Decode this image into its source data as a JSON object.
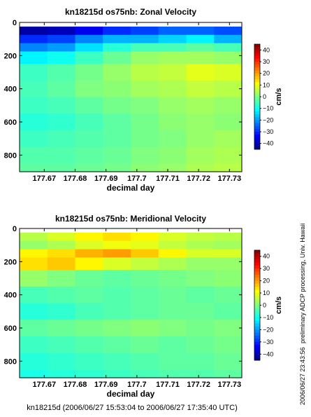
{
  "footer": "kn18215d (2006/06/27 15:53:04 to 2006/06/27 17:35:40 UTC)",
  "side_note": "preliminary ADCP processing,  Univ. Hawaii",
  "timestamp": "2006/06/27 23:43:56",
  "chart_data": [
    {
      "type": "heatmap",
      "title": "kn18215d os75nb: Zonal Velocity",
      "xlabel": "decimal day",
      "ylabel": "",
      "xlim": [
        177.662,
        177.734
      ],
      "ylim": [
        900,
        0
      ],
      "x_ticks": [
        177.67,
        177.68,
        177.69,
        177.7,
        177.71,
        177.72,
        177.73
      ],
      "x_tick_labels": [
        "177.67",
        "177.68",
        "177.69",
        "177.7",
        "177.71",
        "177.72",
        "177.73"
      ],
      "y_ticks": [
        0,
        200,
        400,
        600,
        800
      ],
      "y_tick_labels": [
        "0",
        "200",
        "400",
        "600",
        "800"
      ],
      "depth_levels": [
        50,
        100,
        150,
        200,
        300,
        400,
        500,
        600,
        700,
        800,
        900
      ],
      "values_cm_s": [
        [
          -42,
          -40,
          -35,
          -30,
          -28,
          -25,
          -25,
          -27
        ],
        [
          -30,
          -28,
          -22,
          -18,
          -18,
          -15,
          -12,
          -18
        ],
        [
          -22,
          -20,
          -14,
          -8,
          -5,
          -5,
          -3,
          -5
        ],
        [
          -12,
          -10,
          -6,
          -2,
          2,
          3,
          3,
          2
        ],
        [
          -6,
          -4,
          -1,
          2,
          5,
          6,
          9,
          8
        ],
        [
          -5,
          -3,
          0,
          1,
          3,
          4,
          6,
          5
        ],
        [
          -6,
          -5,
          -3,
          -1,
          0,
          2,
          3,
          2
        ],
        [
          -8,
          -7,
          -5,
          -3,
          -1,
          1,
          2,
          1
        ],
        [
          -6,
          -5,
          -4,
          -3,
          -1,
          0,
          2,
          3
        ],
        [
          -4,
          -4,
          -3,
          -2,
          0,
          1,
          3,
          4
        ],
        [
          -3,
          -3,
          -2,
          -1,
          1,
          2,
          4,
          5
        ]
      ],
      "colorbar": {
        "label": "cm/s",
        "ticks": [
          40,
          30,
          20,
          10,
          0,
          -10,
          -20,
          -30,
          -40
        ],
        "tick_labels": [
          "40",
          "30",
          "20",
          "10",
          "0",
          "−10",
          "−20",
          "−30",
          "−40"
        ],
        "range": [
          -45,
          45
        ]
      }
    },
    {
      "type": "heatmap",
      "title": "kn18215d os75nb: Meridional Velocity",
      "xlabel": "decimal day",
      "ylabel": "",
      "xlim": [
        177.662,
        177.734
      ],
      "ylim": [
        900,
        0
      ],
      "x_ticks": [
        177.67,
        177.68,
        177.69,
        177.7,
        177.71,
        177.72,
        177.73
      ],
      "x_tick_labels": [
        "177.67",
        "177.68",
        "177.69",
        "177.7",
        "177.71",
        "177.72",
        "177.73"
      ],
      "y_ticks": [
        0,
        200,
        400,
        600,
        800
      ],
      "y_tick_labels": [
        "0",
        "200",
        "400",
        "600",
        "800"
      ],
      "depth_levels": [
        50,
        100,
        150,
        200,
        300,
        400,
        500,
        600,
        700,
        800,
        900
      ],
      "values_cm_s": [
        [
          5,
          8,
          12,
          14,
          12,
          8,
          6,
          5
        ],
        [
          2,
          4,
          8,
          10,
          9,
          6,
          4,
          3
        ],
        [
          12,
          14,
          18,
          20,
          16,
          12,
          8,
          8
        ],
        [
          14,
          16,
          12,
          8,
          6,
          4,
          2,
          2
        ],
        [
          2,
          0,
          -2,
          -3,
          -2,
          -1,
          0,
          1
        ],
        [
          -5,
          -4,
          -3,
          -4,
          -3,
          -2,
          -3,
          -2
        ],
        [
          -8,
          -7,
          -5,
          -4,
          -3,
          -2,
          -2,
          -3
        ],
        [
          -3,
          -2,
          -1,
          0,
          1,
          0,
          -1,
          0
        ],
        [
          -6,
          -5,
          -4,
          -3,
          -2,
          -3,
          -2,
          -1
        ],
        [
          -8,
          -7,
          -6,
          -5,
          -4,
          -3,
          -3,
          -2
        ],
        [
          -9,
          -8,
          -7,
          -6,
          -5,
          -4,
          -4,
          -3
        ]
      ],
      "colorbar": {
        "label": "cm/s",
        "ticks": [
          40,
          30,
          20,
          10,
          0,
          -10,
          -20,
          -30,
          -40
        ],
        "tick_labels": [
          "40",
          "30",
          "20",
          "10",
          "0",
          "−10",
          "−20",
          "−30",
          "−40"
        ],
        "range": [
          -45,
          45
        ]
      }
    }
  ]
}
